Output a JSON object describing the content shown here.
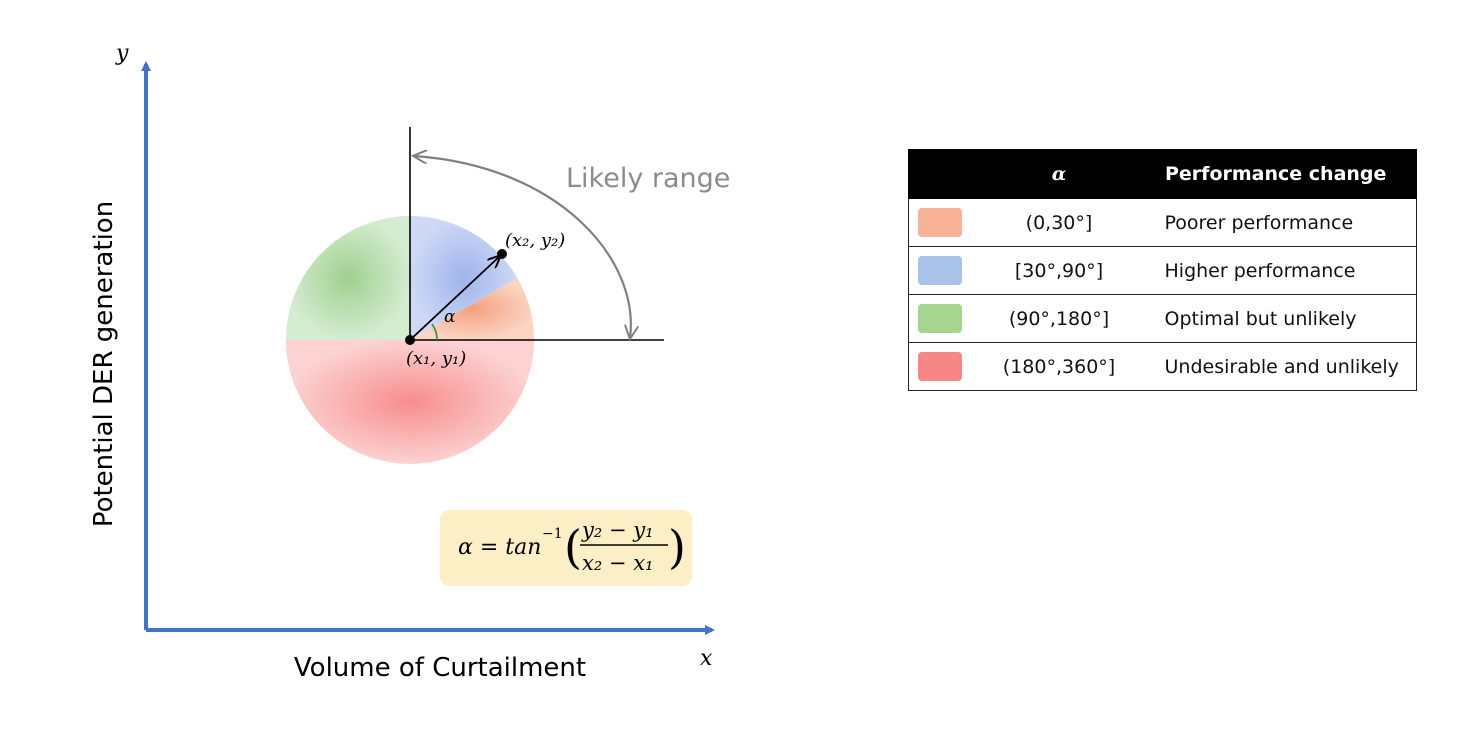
{
  "diagram": {
    "axis_y_letter": "y",
    "axis_x_letter": "x",
    "y_axis_label": "Potential DER generation",
    "x_axis_label": "Volume of Curtailment",
    "likely_range_label": "Likely range",
    "point1_label": "(x₁, y₁)",
    "point2_label": "(x₂, y₂)",
    "angle_label": "α",
    "formula": {
      "lhs": "α = tan",
      "exponent": "−1",
      "numerator": "y₂ − y₁",
      "denominator": "x₂ − x₁"
    },
    "sectors": [
      {
        "name": "poorer",
        "start_deg": 0,
        "end_deg": 30,
        "color": "#f4a07e"
      },
      {
        "name": "higher",
        "start_deg": 30,
        "end_deg": 90,
        "color": "#9fb4ec"
      },
      {
        "name": "optimal",
        "start_deg": 90,
        "end_deg": 180,
        "color": "#9fd08f"
      },
      {
        "name": "undesirable",
        "start_deg": 180,
        "end_deg": 360,
        "color": "#f78d8d"
      }
    ],
    "colors": {
      "axis": "#4472c4",
      "arc": "#808080",
      "formula_bg": "#fcefc6"
    }
  },
  "table": {
    "header_alpha": "α",
    "header_perf": "Performance change",
    "rows": [
      {
        "range": "(0,30°]",
        "perf": "Poorer performance",
        "color": "#f7b298"
      },
      {
        "range": "[30°,90°]",
        "perf": "Higher performance",
        "color": "#a9c3e8"
      },
      {
        "range": "(90°,180°]",
        "perf": "Optimal but unlikely",
        "color": "#a5d58f"
      },
      {
        "range": "(180°,360°]",
        "perf": "Undesirable and unlikely",
        "color": "#f78787"
      }
    ]
  }
}
